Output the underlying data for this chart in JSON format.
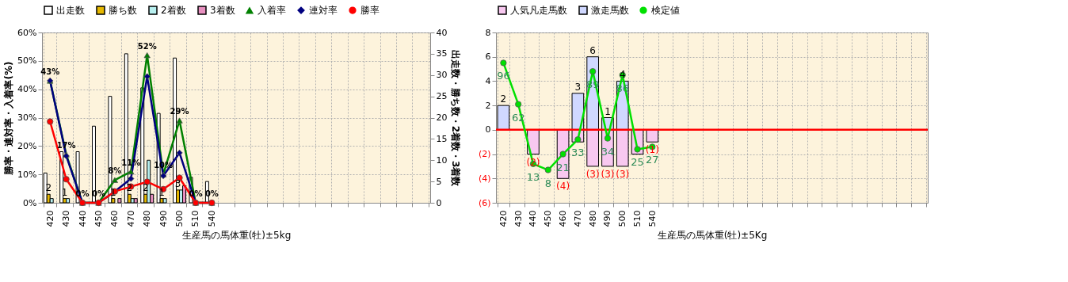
{
  "chart_data": [
    {
      "type": "bar",
      "xlabel": "生産馬の馬体重(牡)±5kg",
      "ylabel": "勝率・連対率・入着率(%)",
      "y2label": "出走数・勝ち数・2着数・3着数",
      "categories": [
        "420",
        "430",
        "440",
        "450",
        "460",
        "470",
        "480",
        "490",
        "500",
        "510",
        "540",
        null,
        null,
        null,
        null,
        null,
        null,
        null,
        null,
        null,
        null,
        null,
        null,
        null
      ],
      "series": [
        {
          "name": "出走数",
          "type": "bar",
          "axis": "y2",
          "color": "#ffffff",
          "values": [
            7,
            12,
            12,
            18,
            25,
            35,
            27,
            21,
            34,
            6,
            5,
            null,
            null,
            null,
            null,
            null,
            null,
            null,
            null,
            null,
            null,
            null,
            null,
            null
          ]
        },
        {
          "name": "勝ち数",
          "type": "bar",
          "axis": "y2",
          "color": "#e6b800",
          "values": [
            2,
            1,
            0,
            0,
            1,
            2,
            2,
            1,
            3,
            0,
            0,
            null,
            null,
            null,
            null,
            null,
            null,
            null,
            null,
            null,
            null,
            null,
            null,
            null
          ],
          "value_labels": [
            "2",
            "1",
            null,
            null,
            "1",
            "2",
            "2",
            "1",
            "3",
            null,
            null,
            null,
            null,
            null,
            null,
            null,
            null,
            null,
            null,
            null,
            null,
            null,
            null,
            null
          ]
        },
        {
          "name": "2着数",
          "type": "bar",
          "axis": "y2",
          "color": "#b8f0f0",
          "values": [
            1,
            1,
            0,
            0,
            0,
            1,
            10,
            1,
            3,
            0,
            0,
            null,
            null,
            null,
            null,
            null,
            null,
            null,
            null,
            null,
            null,
            null,
            null,
            null
          ]
        },
        {
          "name": "3着数",
          "type": "bar",
          "axis": "y2",
          "color": "#e890c0",
          "values": [
            0,
            0,
            0,
            0,
            1,
            1,
            2,
            0,
            4,
            0,
            0,
            null,
            null,
            null,
            null,
            null,
            null,
            null,
            null,
            null,
            null,
            null,
            null,
            null
          ]
        },
        {
          "name": "入着率",
          "type": "line",
          "marker": "triangle",
          "color": "#008000",
          "values": [
            43,
            17,
            0,
            0,
            8,
            11,
            52,
            10,
            29,
            0,
            0,
            null,
            null,
            null,
            null,
            null,
            null,
            null,
            null,
            null,
            null,
            null,
            null,
            null
          ],
          "value_labels": [
            "43%",
            "17%",
            "0%",
            "0%",
            "8%",
            "11%",
            "52%",
            "10%",
            "29%",
            "0%",
            "0%",
            null,
            null,
            null,
            null,
            null,
            null,
            null,
            null,
            null,
            null,
            null,
            null,
            null
          ]
        },
        {
          "name": "連対率",
          "type": "line",
          "marker": "diamond",
          "color": "#000080",
          "values": [
            43,
            16.5,
            0,
            0,
            4,
            8.5,
            44.5,
            9.5,
            17.6,
            0,
            0,
            null,
            null,
            null,
            null,
            null,
            null,
            null,
            null,
            null,
            null,
            null,
            null,
            null
          ]
        },
        {
          "name": "勝率",
          "type": "line",
          "marker": "circle",
          "color": "#ff0000",
          "values": [
            28.6,
            8.3,
            0,
            0,
            4,
            5.7,
            7.4,
            4.8,
            8.8,
            0,
            0,
            null,
            null,
            null,
            null,
            null,
            null,
            null,
            null,
            null,
            null,
            null,
            null,
            null
          ]
        }
      ],
      "ylim": [
        0,
        60
      ],
      "yticks": [
        {
          "value": 0,
          "label": "0%"
        },
        {
          "value": 10,
          "label": "10%"
        },
        {
          "value": 20,
          "label": "20%"
        },
        {
          "value": 30,
          "label": "30%"
        },
        {
          "value": 40,
          "label": "40%"
        },
        {
          "value": 50,
          "label": "50%"
        },
        {
          "value": 60,
          "label": "60%"
        }
      ],
      "y2lim": [
        0,
        40
      ],
      "y2ticks": [
        0,
        5,
        10,
        15,
        20,
        25,
        30,
        35,
        40
      ],
      "grid": true,
      "legend": "top"
    },
    {
      "type": "bar",
      "xlabel": "生産馬の馬体重(牡)±5Kg",
      "stacked": true,
      "categories": [
        "420",
        "430",
        "440",
        "450",
        "460",
        "470",
        "480",
        "490",
        "500",
        "510",
        "540",
        null,
        null,
        null,
        null,
        null,
        null,
        null,
        null,
        null,
        null,
        null,
        null,
        null,
        null,
        null,
        null,
        null,
        null
      ],
      "series": [
        {
          "name": "人気凡走馬数",
          "type": "bar",
          "color": "#f8c8f0",
          "values": [
            null,
            null,
            -2,
            null,
            -4,
            -1,
            -3,
            -3,
            -3,
            -2,
            -1,
            null,
            null,
            null,
            null,
            null,
            null,
            null,
            null,
            null,
            null,
            null,
            null,
            null,
            null,
            null,
            null,
            null,
            null
          ],
          "value_labels": [
            null,
            null,
            "(2)",
            null,
            "(4)",
            null,
            "(3)",
            "(3)",
            "(3)",
            null,
            "(1)",
            null,
            null,
            null,
            null,
            null,
            null,
            null,
            null,
            null,
            null,
            null,
            null,
            null,
            null,
            null,
            null,
            null,
            null
          ]
        },
        {
          "name": "激走馬数",
          "type": "bar",
          "color": "#d0d8ff",
          "values": [
            2,
            null,
            null,
            null,
            null,
            3,
            6,
            1,
            4,
            null,
            null,
            null,
            null,
            null,
            null,
            null,
            null,
            null,
            null,
            null,
            null,
            null,
            null,
            null,
            null,
            null,
            null,
            null,
            null
          ],
          "value_labels": [
            "2",
            null,
            null,
            null,
            null,
            "3",
            "6",
            "1",
            "4",
            null,
            null,
            null,
            null,
            null,
            null,
            null,
            null,
            null,
            null,
            null,
            null,
            null,
            null,
            null,
            null,
            null,
            null,
            null,
            null
          ]
        },
        {
          "name": "検定値",
          "type": "line",
          "axis": "y2",
          "marker": "circle",
          "color": "#00e000",
          "values": [
            96,
            62,
            13,
            8,
            21,
            33,
            89,
            34,
            86,
            25,
            27,
            null,
            null,
            null,
            null,
            null,
            null,
            null,
            null,
            null,
            null,
            null,
            null,
            null,
            null,
            null,
            null,
            null,
            null
          ],
          "value_labels": [
            "96",
            "62",
            "13",
            "8",
            "21",
            "33",
            "89",
            "34",
            "86",
            "25",
            "27",
            null,
            null,
            null,
            null,
            null,
            null,
            null,
            null,
            null,
            null,
            null,
            null,
            null,
            null,
            null,
            null,
            null,
            null
          ]
        }
      ],
      "ylim": [
        -6,
        8
      ],
      "yticks": [
        {
          "value": -6,
          "label": "(6)"
        },
        {
          "value": -4,
          "label": "(4)"
        },
        {
          "value": -2,
          "label": "(2)"
        },
        0,
        2,
        4,
        6,
        8
      ],
      "y2lim": [
        -19,
        121
      ],
      "ref_lines": [
        {
          "axis": "y",
          "value": 0,
          "color": "#ff0000"
        }
      ],
      "grid": true,
      "legend": "top"
    }
  ]
}
